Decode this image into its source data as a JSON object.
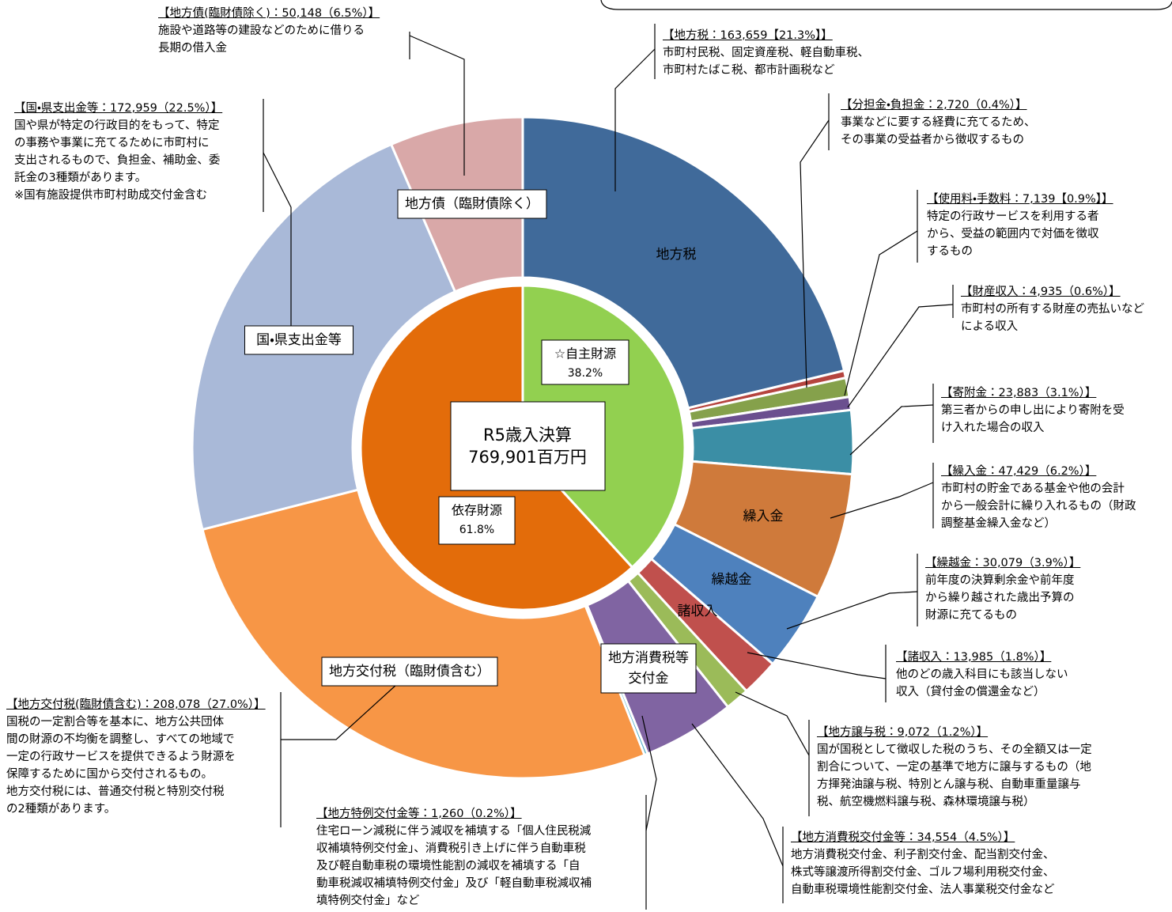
{
  "chart_data": {
    "type": "donut",
    "center_label": [
      "R5歳入決算",
      "769,901百万円"
    ],
    "rings": [
      {
        "categories": [
          "☆自主財源",
          "依存財源"
        ],
        "values": [
          38.2,
          61.8
        ],
        "value_labels": [
          "38.2%",
          "61.8%"
        ],
        "colors": [
          "#92d050",
          "#e36c0a"
        ]
      },
      {
        "categories": [
          "地方税",
          null,
          null,
          null,
          null,
          "繰入金",
          "繰越金",
          "諸収入",
          null,
          [
            "地方消費税等",
            "交付金"
          ],
          null,
          "地方交付税（臨財債含む）",
          "国・県支出金等",
          "地方債（臨財債除く）"
        ],
        "values": [
          163659,
          2720,
          7139,
          4935,
          23883,
          47429,
          30079,
          13985,
          9072,
          34554,
          1260,
          208078,
          172959,
          50148
        ],
        "colors": [
          "#406a9a",
          "#b5443f",
          "#85a14b",
          "#6b4f8f",
          "#3b8ea5",
          "#cf7a3b",
          "#4e81bd",
          "#c0504d",
          "#9bbb59",
          "#8064a2",
          "#4bacc6",
          "#f79646",
          "#a9b9d8",
          "#d9a8a8"
        ]
      }
    ],
    "annotations": [
      {
        "heading": "【地方税：163,659【21.3%】】",
        "lines": [
          "市町村民税、固定資産税、軽自動車税、",
          "市町村たばこ税、都市計画税など"
        ]
      },
      {
        "heading": "【分担金・負担金：2,720（0.4%）】",
        "lines": [
          "事業などに要する経費に充てるため、",
          "その事業の受益者から徴収するもの"
        ]
      },
      {
        "heading": "【使用料・手数料：7,139【0.9%】】",
        "lines": [
          "特定の行政サービスを利用する者",
          "から、受益の範囲内で対価を徴収",
          "するもの"
        ]
      },
      {
        "heading": "【財産収入：4,935（0.6%）】",
        "lines": [
          "市町村の所有する財産の売払いなど",
          "による収入"
        ]
      },
      {
        "heading": "【寄附金：23,883（3.1%）】",
        "lines": [
          "第三者からの申し出により寄附を受",
          "け入れた場合の収入"
        ]
      },
      {
        "heading": "【繰入金：47,429（6.2%）】",
        "lines": [
          "市町村の貯金である基金や他の会計",
          "から一般会計に繰り入れるもの（財政",
          "調整基金繰入金など）"
        ]
      },
      {
        "heading": "【繰越金：30,079（3.9%）】",
        "lines": [
          "前年度の決算剰余金や前年度",
          "から繰り越された歳出予算の",
          "財源に充てるもの"
        ]
      },
      {
        "heading": "【諸収入：13,985（1.8%）】",
        "lines": [
          "他のどの歳入科目にも該当しない",
          "収入（貸付金の償還金など）"
        ]
      },
      {
        "heading": "【地方譲与税：9,072（1.2%）】",
        "lines": [
          "国が国税として徴収した税のうち、その全額又は一定",
          "割合について、一定の基準で地方に譲与するもの（地",
          "方揮発油譲与税、特別とん譲与税、自動車重量譲与",
          "税、航空機燃料譲与税、森林環境譲与税）"
        ]
      },
      {
        "heading": "【地方消費税交付金等：34,554（4.5%）】",
        "lines": [
          "地方消費税交付金、利子割交付金、配当割交付金、",
          "株式等譲渡所得割交付金、ゴルフ場利用税交付金、",
          "自動車税環境性能割交付金、法人事業税交付金など"
        ]
      },
      {
        "heading": "【地方特例交付金等：1,260（0.2%）】",
        "lines": [
          "住宅ローン減税に伴う減収を補填する「個人住民税減",
          "収補填特例交付金」、消費税引き上げに伴う自動車税",
          "及び軽自動車税の環境性能割の減収を補填する「自",
          "動車税減収補填特例交付金」及び「軽自動車税減収補",
          "填特例交付金」など"
        ]
      },
      {
        "heading": "【地方交付税(臨財債含む)：208,078（27.0%）】",
        "lines": [
          "国税の一定割合等を基本に、地方公共団体",
          "間の財源の不均衡を調整し、すべての地域で",
          "一定の行政サービスを提供できるよう財源を",
          "保障するために国から交付されるもの。",
          "地方交付税には、普通交付税と特別交付税",
          "の2種類があります。"
        ]
      },
      {
        "heading": "【国・県支出金等：172,959（22.5%）】",
        "lines": [
          "国や県が特定の行政目的をもって、特定",
          "の事務や事業に充てるために市町村に",
          "支出されるもので、負担金、補助金、委",
          "託金の3種類があります。",
          "※国有施設提供市町村助成交付金含む"
        ]
      },
      {
        "heading": "【地方債(臨財債除く)：50,148（6.5%）】",
        "lines": [
          "施設や道路等の建設などのために借りる",
          "長期の借入金"
        ]
      }
    ]
  }
}
